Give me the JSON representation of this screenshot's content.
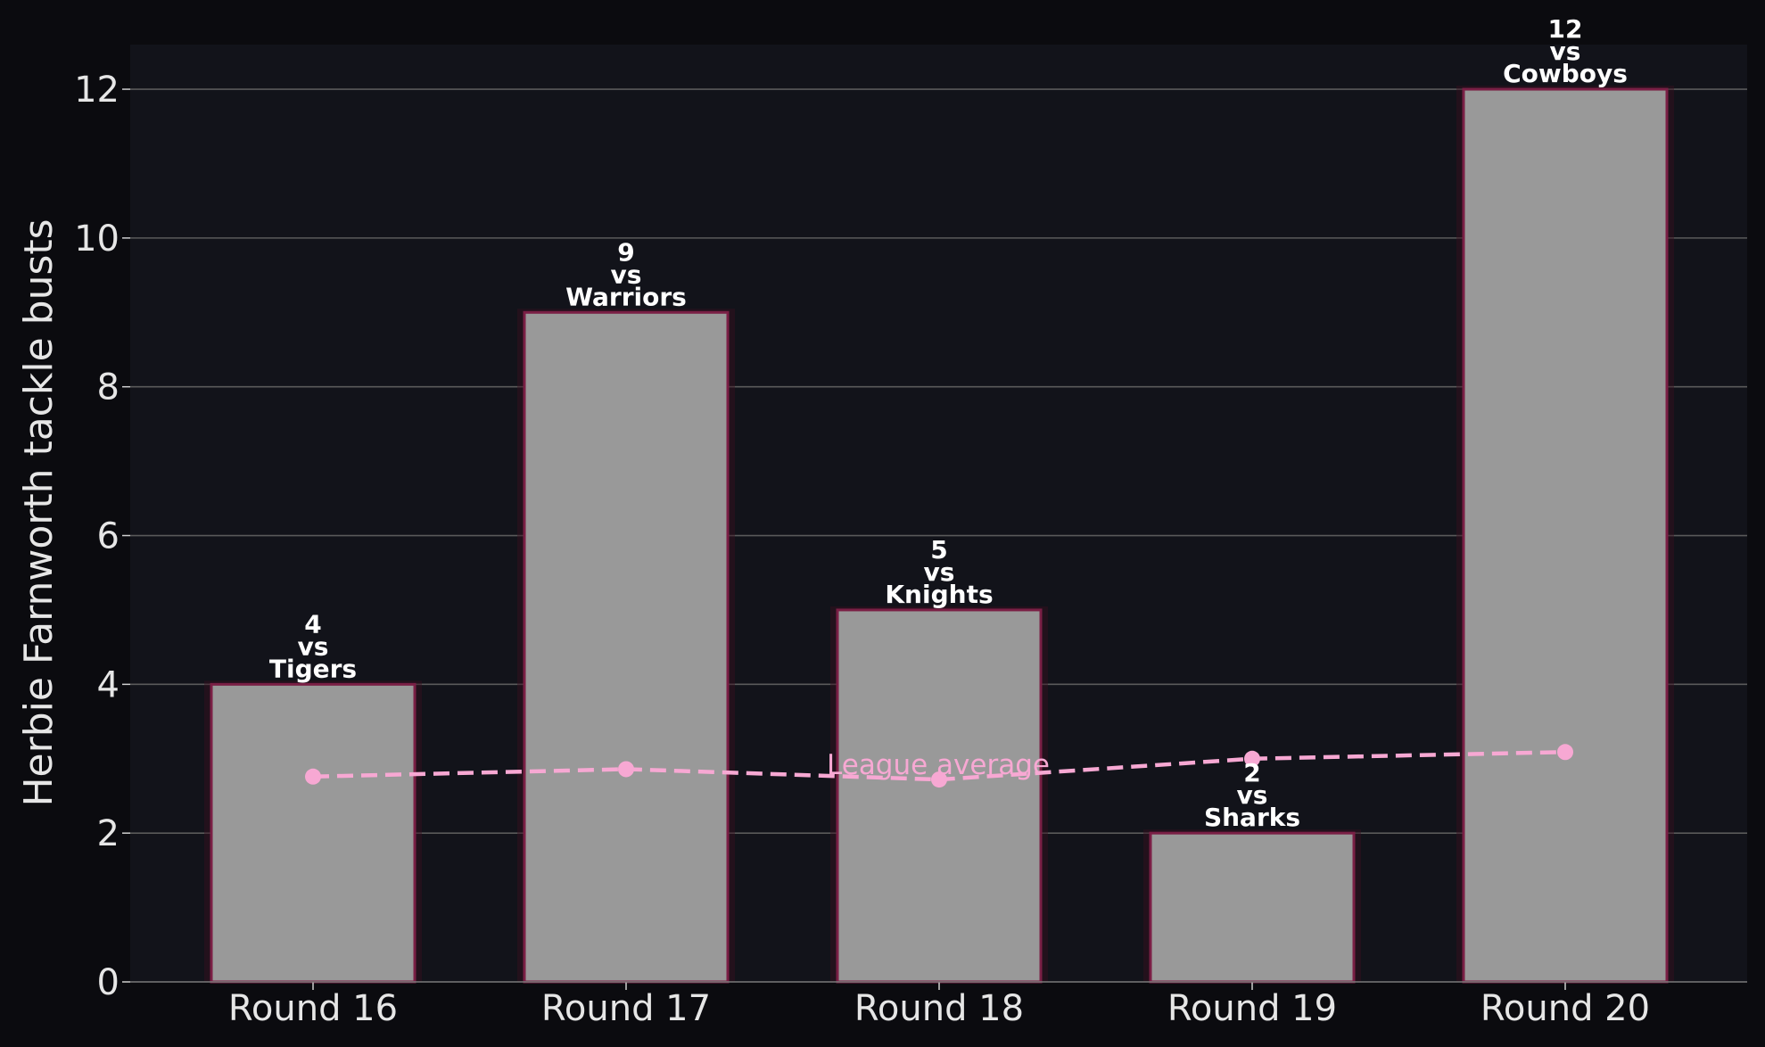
{
  "chart_data": {
    "type": "bar",
    "title": "",
    "xlabel": "",
    "ylabel": "Herbie Farnworth tackle busts",
    "ylim": [
      0,
      12.6
    ],
    "yticks": [
      0,
      2,
      4,
      6,
      8,
      10,
      12
    ],
    "grid": "y",
    "categories": [
      "Round 16",
      "Round 17",
      "Round 18",
      "Round 19",
      "Round 20"
    ],
    "series": [
      {
        "type": "bar",
        "values": [
          4,
          9,
          5,
          2,
          12
        ],
        "opponents": [
          "Tigers",
          "Warriors",
          "Knights",
          "Sharks",
          "Cowboys"
        ],
        "vs_text": "vs",
        "color": "#999999",
        "edge_color": "#7a1f45"
      },
      {
        "type": "line",
        "name": "League average",
        "values": [
          2.76,
          2.86,
          2.72,
          3.0,
          3.09
        ],
        "color": "#f7a8d3",
        "style": "dashed"
      }
    ],
    "colors": {
      "page_background": "#0b0b0f",
      "plot_background": "#12131a",
      "grid": "#5a5a5a",
      "text": "#e6e6e6"
    }
  }
}
